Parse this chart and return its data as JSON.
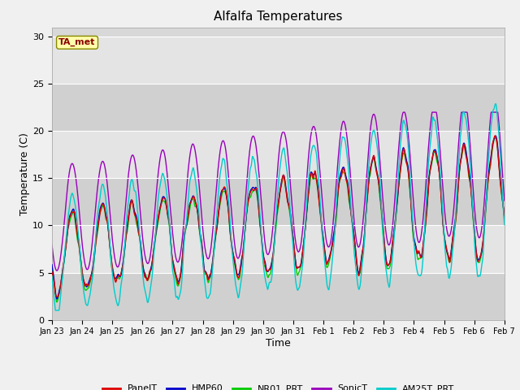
{
  "title": "Alfalfa Temperatures",
  "xlabel": "Time",
  "ylabel": "Temperature (C)",
  "ylim": [
    0,
    31
  ],
  "yticks": [
    0,
    5,
    10,
    15,
    20,
    25,
    30
  ],
  "fig_bg": "#f0f0f0",
  "plot_bg": "#d8d8d8",
  "band_colors": [
    "#c8c8c8",
    "#e0e0e0"
  ],
  "annotation_text": "TA_met",
  "annotation_color": "#8b0000",
  "annotation_bg": "#ffffaa",
  "annotation_edge": "#888800",
  "series_colors": {
    "PanelT": "#dd0000",
    "HMP60": "#0000cc",
    "NR01_PRT": "#00cc00",
    "SonicT": "#9900bb",
    "AM25T_PRT": "#00cccc"
  },
  "legend_labels": [
    "PanelT",
    "HMP60",
    "NR01_PRT",
    "SonicT",
    "AM25T_PRT"
  ],
  "x_tick_labels": [
    "Jan 23",
    "Jan 24",
    "Jan 25",
    "Jan 26",
    "Jan 27",
    "Jan 28",
    "Jan 29",
    "Jan 30",
    "Jan 31",
    "Feb 1",
    "Feb 2",
    "Feb 3",
    "Feb 4",
    "Feb 5",
    "Feb 6",
    "Feb 7"
  ],
  "num_days": 15,
  "points_per_day": 96,
  "seed": 42
}
